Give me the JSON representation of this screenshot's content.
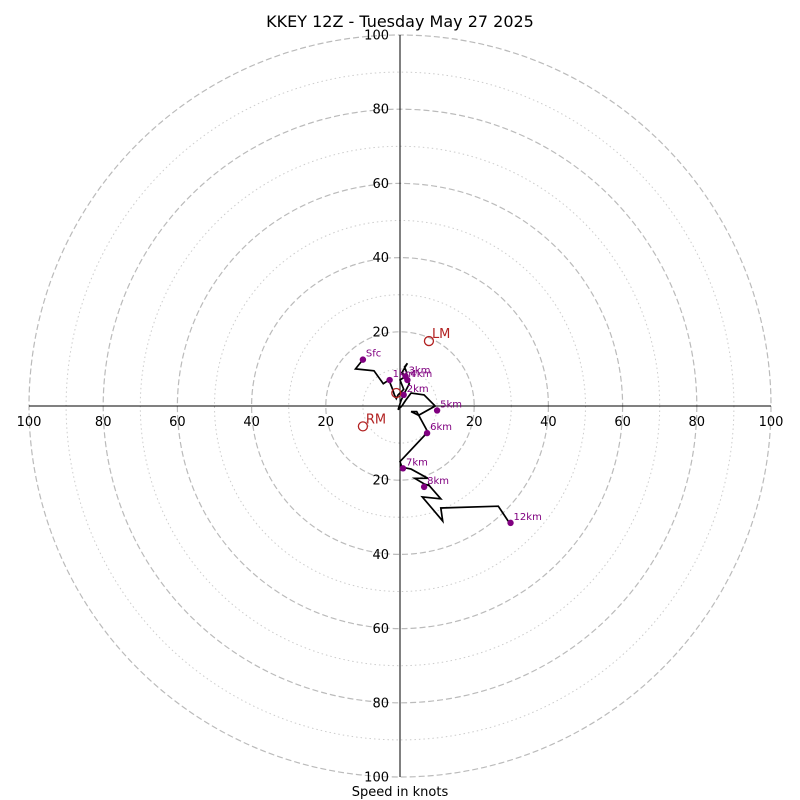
{
  "chart_data": {
    "type": "hodograph",
    "title": "KKEY 12Z - Tuesday May 27 2025",
    "xlabel": "Speed in knots",
    "units": "knots",
    "range": 100,
    "ring_major": [
      20,
      40,
      60,
      80,
      100
    ],
    "ring_minor": [
      10,
      30,
      50,
      70,
      90
    ],
    "tick_labels_h": [
      "100",
      "80",
      "60",
      "40",
      "20",
      "",
      "20",
      "40",
      "60",
      "80",
      "100"
    ],
    "tick_labels_v": [
      "100",
      "80",
      "60",
      "40",
      "20",
      "",
      "20",
      "40",
      "60",
      "80",
      "100"
    ],
    "colors": {
      "trace": "#000000",
      "height_marker": "#800080",
      "storm_motion": "#b22222",
      "ring_major": "#bbbbbb",
      "ring_minor": "#cccccc",
      "axis": "#000000"
    },
    "trace": [
      [
        -10,
        12.5
      ],
      [
        -12,
        10
      ],
      [
        -7,
        9.5
      ],
      [
        -4.5,
        6
      ],
      [
        -3,
        7
      ],
      [
        -2,
        4.5
      ],
      [
        -1.5,
        3
      ],
      [
        -1,
        2
      ],
      [
        -0.5,
        3
      ],
      [
        0.5,
        4
      ],
      [
        1,
        4.5
      ],
      [
        0,
        7
      ],
      [
        1.5,
        8
      ],
      [
        1.8,
        9
      ],
      [
        1.2,
        10.5
      ],
      [
        2,
        11.5
      ],
      [
        0.5,
        9
      ],
      [
        1.8,
        7.5
      ],
      [
        2.5,
        6
      ],
      [
        2,
        5
      ],
      [
        1.2,
        3.5
      ],
      [
        0.3,
        1.5
      ],
      [
        -0.5,
        -1
      ],
      [
        0.5,
        0
      ],
      [
        1.5,
        1.5
      ],
      [
        3,
        3.5
      ],
      [
        6.5,
        3
      ],
      [
        9.5,
        0
      ],
      [
        5,
        -2.5
      ],
      [
        3,
        -1.5
      ],
      [
        4.5,
        -1.5
      ],
      [
        7.5,
        -7
      ],
      [
        0,
        -15
      ],
      [
        0.5,
        -16.5
      ],
      [
        3,
        -17
      ],
      [
        7.5,
        -19.5
      ],
      [
        4,
        -19.5
      ],
      [
        6.5,
        -21
      ],
      [
        8,
        -21.5
      ],
      [
        7.5,
        -21
      ],
      [
        11,
        -25
      ],
      [
        6,
        -24.5
      ],
      [
        11.5,
        -31
      ],
      [
        11,
        -27.5
      ],
      [
        26.5,
        -27
      ],
      [
        29.5,
        -31.5
      ]
    ],
    "height_markers": [
      {
        "label": "Sfc",
        "u": -10,
        "v": 12.5
      },
      {
        "label": "1km",
        "u": -2.8,
        "v": 7
      },
      {
        "label": "2km",
        "u": 1,
        "v": 3
      },
      {
        "label": "3km",
        "u": 1.5,
        "v": 8
      },
      {
        "label": "4km",
        "u": 2,
        "v": 7
      },
      {
        "label": "5km",
        "u": 10,
        "v": -1.2
      },
      {
        "label": "6km",
        "u": 7.3,
        "v": -7.3
      },
      {
        "label": "7km",
        "u": 0.8,
        "v": -16.8
      },
      {
        "label": "8km",
        "u": 6.5,
        "v": -21.8
      },
      {
        "label": "12km",
        "u": 29.8,
        "v": -31.5
      }
    ],
    "storm_motion": [
      {
        "label": "LM",
        "u": 7.8,
        "v": 17.5
      },
      {
        "label": "RM",
        "u": -10,
        "v": -5.5
      },
      {
        "label": "",
        "u": -1,
        "v": 3.5
      }
    ]
  }
}
